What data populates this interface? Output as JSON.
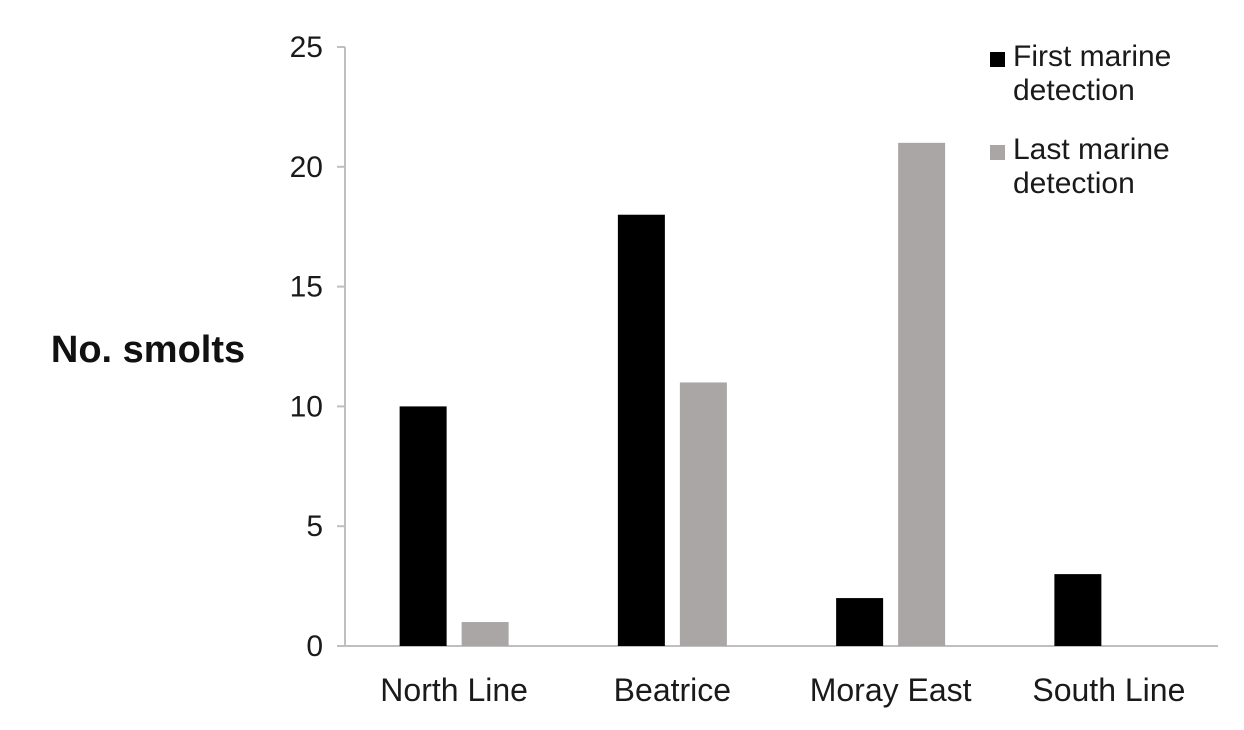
{
  "chart_data": {
    "type": "bar",
    "title": "",
    "xlabel": "",
    "ylabel": "No. smolts",
    "categories": [
      "North Line",
      "Beatrice",
      "Moray East",
      "South Line"
    ],
    "series": [
      {
        "name": "First marine detection",
        "values": [
          10,
          18,
          2,
          3
        ],
        "color": "#000000"
      },
      {
        "name": "Last marine detection",
        "values": [
          1,
          11,
          21,
          0
        ],
        "color": "#aaa6a5"
      }
    ],
    "ylim": [
      0,
      25
    ],
    "yticks": [
      0,
      5,
      10,
      15,
      20,
      25
    ],
    "grid": false,
    "legend": {
      "placement": "top-right",
      "entries": [
        {
          "lines": [
            "First marine",
            "detection"
          ],
          "color": "#000000"
        },
        {
          "lines": [
            "Last marine",
            "detection"
          ],
          "color": "#aaa6a5"
        }
      ]
    },
    "axis_color": "#bfbfbf"
  }
}
